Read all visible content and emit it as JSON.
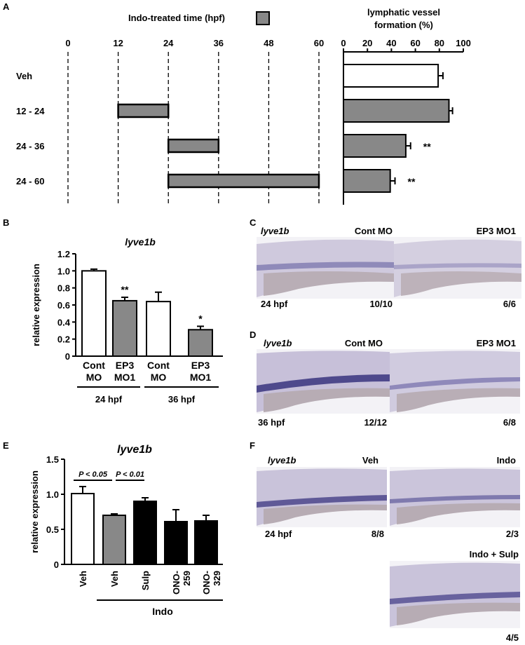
{
  "panels": {
    "a": {
      "letter": "A"
    },
    "b": {
      "letter": "B"
    },
    "c": {
      "letter": "C"
    },
    "d": {
      "letter": "D"
    },
    "e": {
      "letter": "E"
    },
    "f": {
      "letter": "F"
    }
  },
  "panel_a": {
    "legend_label": "Indo-treated time (hpf)",
    "right_title_line1": "lymphatic vessel",
    "right_title_line2": "formation (%)",
    "time_ticks": [
      "0",
      "12",
      "24",
      "36",
      "48",
      "60"
    ],
    "row_labels": [
      "Veh",
      "12 - 24",
      "24 - 36",
      "24 - 60"
    ]
  },
  "panel_c": {
    "gene": "lyve1b",
    "left_label": "Cont MO",
    "right_label": "EP3 MO1",
    "stage": "24 hpf",
    "left_count": "10/10",
    "right_count": "6/6"
  },
  "panel_d": {
    "gene": "lyve1b",
    "left_label": "Cont MO",
    "right_label": "EP3 MO1",
    "stage": "36 hpf",
    "left_count": "12/12",
    "right_count": "6/8"
  },
  "panel_f": {
    "gene": "lyve1b",
    "top_left_label": "Veh",
    "top_right_label": "Indo",
    "bottom_label": "Indo + Sulp",
    "stage": "24 hpf",
    "top_left_count": "8/8",
    "top_right_count": "2/3",
    "bottom_count": "4/5"
  },
  "colors": {
    "gray_bar": "#888888",
    "white_bar": "#ffffff",
    "black_bar": "#000000",
    "embryo_tissue": "#c9c3d8",
    "embryo_stain": "#3b3580",
    "image_bg": "#f3f2f6"
  },
  "chart_data": [
    {
      "type": "bar",
      "orientation": "horizontal",
      "id": "A-timeline",
      "title": "Indo-treated time (hpf)",
      "xlim": [
        0,
        60
      ],
      "xticks": [
        0,
        12,
        24,
        36,
        48,
        60
      ],
      "categories": [
        "Veh",
        "12 - 24",
        "24 - 36",
        "24 - 60"
      ],
      "intervals": [
        null,
        [
          12,
          24
        ],
        [
          24,
          36
        ],
        [
          24,
          60
        ]
      ]
    },
    {
      "type": "bar",
      "orientation": "horizontal",
      "id": "A-formation",
      "title": "lymphatic vessel formation (%)",
      "xlim": [
        0,
        100
      ],
      "xticks": [
        0,
        20,
        40,
        60,
        80,
        100
      ],
      "categories": [
        "Veh",
        "12 - 24",
        "24 - 36",
        "24 - 60"
      ],
      "values": [
        79,
        88,
        52,
        39
      ],
      "errors": [
        4,
        3,
        4,
        4
      ],
      "annotations": [
        "",
        "",
        "**",
        "**"
      ],
      "fills": [
        "white",
        "gray",
        "gray",
        "gray"
      ]
    },
    {
      "type": "bar",
      "id": "B",
      "title": "lyve1b",
      "ylabel": "relative expression",
      "ylim": [
        0,
        1.2
      ],
      "yticks": [
        "0",
        "0.2",
        "0.4",
        "0.6",
        "0.8",
        "1.0",
        "1.2"
      ],
      "categories": [
        [
          "Cont",
          "MO"
        ],
        [
          "EP3",
          "MO1"
        ],
        [
          "Cont",
          "MO"
        ],
        [
          "EP3",
          "MO1"
        ]
      ],
      "values": [
        1.0,
        0.65,
        0.64,
        0.31
      ],
      "errors": [
        0.02,
        0.04,
        0.11,
        0.04
      ],
      "annotations": [
        "",
        "**",
        "",
        "*"
      ],
      "fills": [
        "white",
        "gray",
        "white",
        "gray"
      ],
      "groups": [
        "24 hpf",
        "36 hpf"
      ]
    },
    {
      "type": "bar",
      "id": "E",
      "title": "lyve1b",
      "ylabel": "relative expression",
      "ylim": [
        0,
        1.5
      ],
      "yticks": [
        "0",
        "0.5",
        "1.0",
        "1.5"
      ],
      "categories": [
        "Veh",
        "Veh",
        "Sulp",
        "ONO-259",
        "ONO-329"
      ],
      "tick_lines": [
        [
          "Veh"
        ],
        [
          "Veh"
        ],
        [
          "Sulp"
        ],
        [
          "ONO-",
          "259"
        ],
        [
          "ONO-",
          "329"
        ]
      ],
      "values": [
        1.01,
        0.7,
        0.9,
        0.61,
        0.62
      ],
      "errors": [
        0.1,
        0.02,
        0.05,
        0.17,
        0.08
      ],
      "fills": [
        "white",
        "gray",
        "black",
        "black",
        "black"
      ],
      "comparisons": [
        "P < 0.05",
        "P < 0.01"
      ],
      "group_label": "Indo"
    }
  ]
}
